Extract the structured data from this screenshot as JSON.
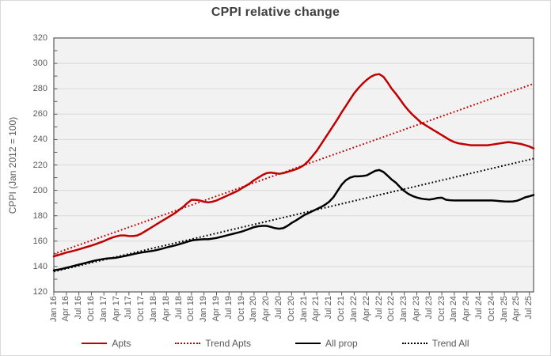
{
  "title": "CPPI relative change",
  "legend": [
    {
      "label": "Apts",
      "color": "#c00000",
      "style": "solid"
    },
    {
      "label": "Trend Apts",
      "color": "#c00000",
      "style": "dotted"
    },
    {
      "label": "All prop",
      "color": "#000000",
      "style": "solid"
    },
    {
      "label": "Trend All",
      "color": "#000000",
      "style": "dotted"
    }
  ],
  "colors": {
    "apts_red": "#c00000",
    "all_prop_black": "#000000",
    "gridline": "#d9d9d9",
    "axis_line": "#595959",
    "axis_text": "#595959",
    "title_text": "#404040",
    "plot_background": "#f2f2f2"
  },
  "chart_data": {
    "type": "line",
    "title": "CPPI relative change",
    "xlabel": "",
    "ylabel": "CPPI (Jan 2012 = 100)",
    "x_start": "Jan 2016",
    "x_end": "Aug 2025",
    "months_total": 116,
    "x_tick_every_months": 3,
    "y_min": 120,
    "y_max": 320,
    "y_step": 20,
    "grid": "horizontal",
    "legend_position": "bottom",
    "y_tick_labels": [
      320,
      300,
      280,
      260,
      240,
      220,
      200,
      180,
      160,
      140,
      120
    ],
    "x_tick_labels": [
      "Jan 16",
      "Apr 16",
      "Jul 16",
      "Oct 16",
      "Jan 17",
      "Apr 17",
      "Jul 17",
      "Oct 17",
      "Jan 18",
      "Apr 18",
      "Jul 18",
      "Oct 18",
      "Jan 19",
      "Apr 19",
      "Jul 19",
      "Oct 19",
      "Jan 20",
      "Apr 20",
      "Jul 20",
      "Oct 20",
      "Jan 21",
      "Apr 21",
      "Jul 21",
      "Oct 21",
      "Jan 22",
      "Apr 22",
      "Jul 22",
      "Oct 22",
      "Jan 23",
      "Apr 23",
      "Jul 23",
      "Oct 23",
      "Jan 24",
      "Apr 24",
      "Jul 24",
      "Oct 24",
      "Jan 25",
      "Apr 25",
      "Jul 25"
    ],
    "series": [
      {
        "name": "Apts",
        "color": "#c00000",
        "dash": false,
        "values": [
          148,
          149,
          150,
          151,
          151.8,
          152.6,
          153.5,
          154.5,
          155.5,
          156.5,
          157.6,
          158.8,
          160,
          161.5,
          162.8,
          163.8,
          164.5,
          164.5,
          164,
          164,
          164.5,
          166,
          168,
          170,
          172,
          174,
          176,
          178,
          180,
          182,
          184.5,
          187,
          190,
          192.5,
          192.5,
          192,
          191,
          190.5,
          191,
          192,
          193.5,
          195,
          196.5,
          198,
          199.5,
          201.5,
          203.5,
          205.5,
          208,
          210,
          212,
          213.5,
          214,
          213.5,
          213,
          213.5,
          214.5,
          215.5,
          216.5,
          218,
          220,
          223,
          227,
          231,
          236,
          241,
          246,
          251,
          256,
          261.5,
          266.5,
          271.5,
          276.5,
          280.5,
          284,
          287,
          289.5,
          291,
          291.5,
          289.5,
          285,
          280,
          276,
          271.5,
          267,
          263,
          259.5,
          256.5,
          253.5,
          251.5,
          249.5,
          247.5,
          245.5,
          243.5,
          241.5,
          239.5,
          238,
          237,
          236.5,
          236,
          235.5,
          235.5,
          235.5,
          235.5,
          235.5,
          236,
          236.5,
          237,
          237.5,
          238,
          237.5,
          237,
          236.5,
          235.5,
          234.5,
          233
        ]
      },
      {
        "name": "Trend Apts",
        "color": "#c00000",
        "dash": true,
        "line": {
          "x": [
            0,
            115
          ],
          "y": [
            150,
            284
          ]
        }
      },
      {
        "name": "All prop",
        "color": "#000000",
        "dash": false,
        "values": [
          137,
          137.5,
          138.2,
          139,
          139.8,
          140.6,
          141.5,
          142.3,
          143.2,
          144,
          144.8,
          145.4,
          146,
          146.4,
          146.6,
          147,
          147.6,
          148.3,
          149,
          149.7,
          150.4,
          151,
          151.5,
          152,
          152.5,
          153.3,
          154.1,
          155,
          155.8,
          156.6,
          157.5,
          158.5,
          159.5,
          160.5,
          161,
          161.3,
          161.5,
          161.5,
          162,
          162.5,
          163.3,
          164.1,
          165,
          165.8,
          166.6,
          167.5,
          168.6,
          169.8,
          171,
          171.7,
          172,
          172,
          171.2,
          170.2,
          169.8,
          170.2,
          172,
          174.3,
          176.2,
          178.3,
          180.5,
          182,
          183.6,
          185.2,
          186.8,
          188.6,
          191,
          194.5,
          199.5,
          204.5,
          208,
          210,
          211,
          211,
          211.3,
          211.8,
          213.5,
          215.3,
          216,
          214.5,
          211.5,
          208.5,
          206,
          202.5,
          199.5,
          197.2,
          195.5,
          194.3,
          193.5,
          193,
          192.8,
          193.2,
          194,
          194.2,
          192.6,
          192.2,
          192,
          192,
          192,
          192,
          192,
          192,
          192,
          192,
          192,
          192,
          191.8,
          191.5,
          191.3,
          191.2,
          191.3,
          191.8,
          193,
          194.5,
          195.3,
          196.3
        ]
      },
      {
        "name": "Trend All",
        "color": "#000000",
        "dash": true,
        "line": {
          "x": [
            0,
            115
          ],
          "y": [
            136,
            225
          ]
        }
      }
    ]
  }
}
